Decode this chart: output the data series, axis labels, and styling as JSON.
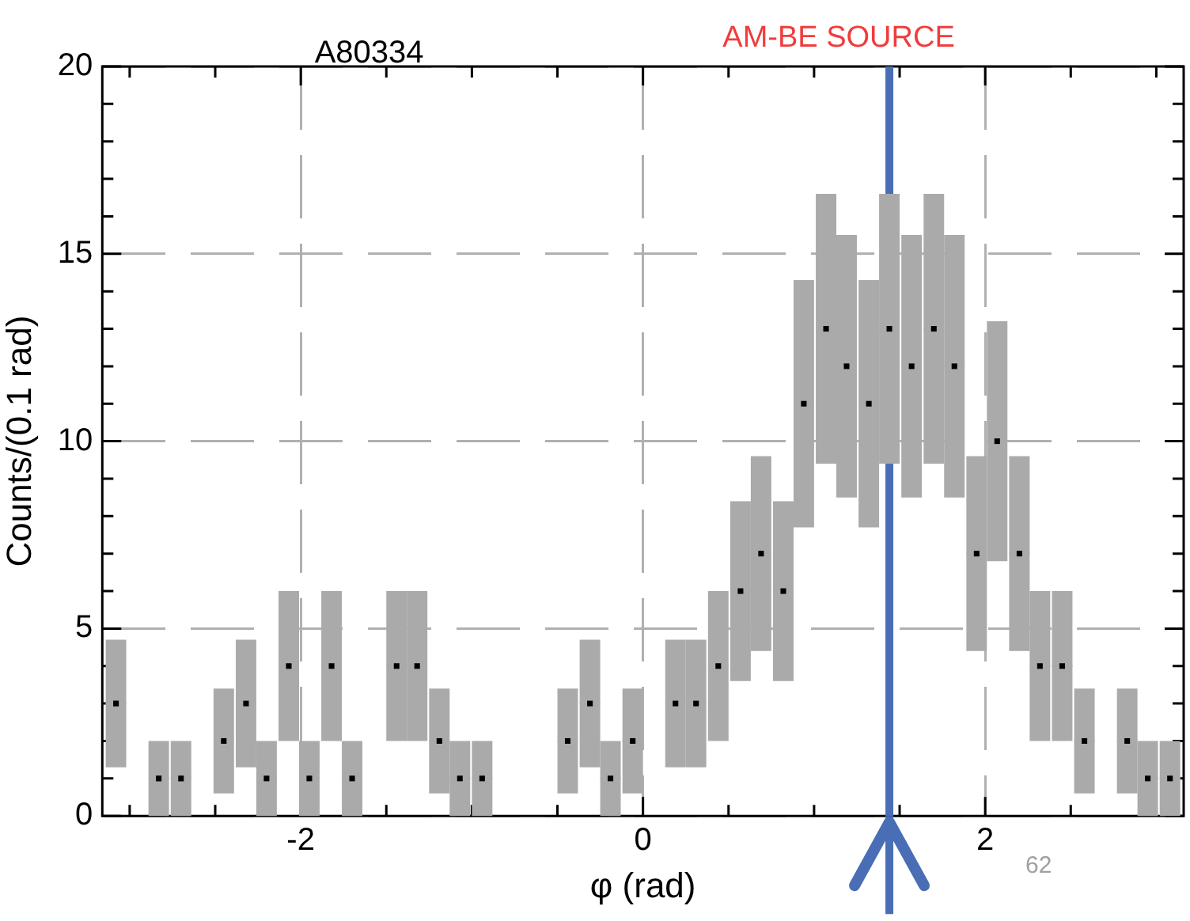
{
  "chart_data": {
    "type": "scatter",
    "title": "A80334",
    "xlabel": "φ (rad)",
    "ylabel": "Counts/(0.1 rad)",
    "x": [
      -3.08,
      -2.95,
      -2.83,
      -2.7,
      -2.58,
      -2.45,
      -2.32,
      -2.2,
      -2.07,
      -1.95,
      -1.82,
      -1.7,
      -1.57,
      -1.44,
      -1.32,
      -1.19,
      -1.07,
      -0.94,
      -0.82,
      -0.69,
      -0.57,
      -0.44,
      -0.31,
      -0.19,
      -0.06,
      0.06,
      0.19,
      0.31,
      0.44,
      0.57,
      0.69,
      0.82,
      0.94,
      1.07,
      1.19,
      1.32,
      1.44,
      1.57,
      1.7,
      1.82,
      1.95,
      2.07,
      2.2,
      2.32,
      2.45,
      2.58,
      2.7,
      2.83,
      2.95,
      3.08
    ],
    "values": [
      3,
      null,
      1,
      1,
      null,
      2,
      3,
      1,
      4,
      1,
      4,
      1,
      null,
      4,
      4,
      2,
      1,
      1,
      null,
      null,
      null,
      2,
      3,
      1,
      2,
      null,
      3,
      3,
      4,
      6,
      7,
      6,
      11,
      13,
      12,
      11,
      13,
      12,
      13,
      12,
      7,
      10,
      7,
      4,
      4,
      2,
      null,
      2,
      1,
      1
    ],
    "errors": [
      1.7,
      null,
      1,
      1,
      null,
      1.4,
      1.7,
      1,
      2,
      1,
      2,
      1,
      null,
      2,
      2,
      1.4,
      1,
      1,
      null,
      null,
      null,
      1.4,
      1.7,
      1,
      1.4,
      null,
      1.7,
      1.7,
      2,
      2.4,
      2.6,
      2.4,
      3.3,
      3.6,
      3.5,
      3.3,
      3.6,
      3.5,
      3.6,
      3.5,
      2.6,
      3.2,
      2.6,
      2,
      2,
      1.4,
      null,
      1.4,
      1,
      1
    ],
    "xerrors": [
      0.06,
      null,
      0.06,
      0.06,
      null,
      0.06,
      0.06,
      0.06,
      0.06,
      0.06,
      0.06,
      0.06,
      null,
      0.06,
      0.06,
      0.06,
      0.06,
      0.06,
      null,
      null,
      null,
      0.06,
      0.06,
      0.06,
      0.06,
      null,
      0.06,
      0.06,
      0.06,
      0.06,
      0.06,
      0.06,
      0.06,
      0.06,
      0.06,
      0.06,
      0.06,
      0.06,
      0.06,
      0.06,
      0.06,
      0.06,
      0.06,
      0.06,
      0.06,
      0.06,
      null,
      0.06,
      0.06,
      0.06
    ],
    "color": "#000000",
    "xlim": [
      -3.16,
      3.16
    ],
    "xticks": [
      {
        "value": -3,
        "label": null
      },
      {
        "value": -2.5,
        "label": null
      },
      -2,
      {
        "value": -1.5,
        "label": null
      },
      {
        "value": -1,
        "label": null
      },
      {
        "value": -0.5,
        "label": null
      },
      0,
      {
        "value": 0.5,
        "label": null
      },
      {
        "value": 1,
        "label": null
      },
      {
        "value": 1.5,
        "label": null
      },
      2,
      {
        "value": 2.5,
        "label": null
      },
      {
        "value": 3,
        "label": null
      }
    ],
    "ylim": [
      0,
      20
    ],
    "yticks": [
      0,
      {
        "value": 1,
        "label": null
      },
      {
        "value": 2,
        "label": null
      },
      {
        "value": 3,
        "label": null
      },
      {
        "value": 4,
        "label": null
      },
      5,
      {
        "value": 6,
        "label": null
      },
      {
        "value": 7,
        "label": null
      },
      {
        "value": 8,
        "label": null
      },
      {
        "value": 9,
        "label": null
      },
      10,
      {
        "value": 11,
        "label": null
      },
      {
        "value": 12,
        "label": null
      },
      {
        "value": 13,
        "label": null
      },
      {
        "value": 14,
        "label": null
      },
      15,
      {
        "value": 16,
        "label": null
      },
      {
        "value": 17,
        "label": null
      },
      {
        "value": 18,
        "label": null
      },
      {
        "value": 19,
        "label": null
      },
      20
    ],
    "grid": true,
    "ref_lines": [
      {
        "axis": "x",
        "value": 1.44,
        "label": "AM-BE SOURCE",
        "color": "#4a6eb5"
      }
    ],
    "annotations": [
      "62"
    ]
  }
}
